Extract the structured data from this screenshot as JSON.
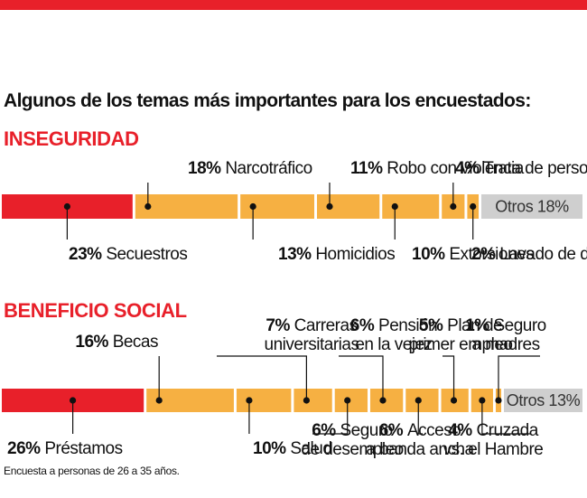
{
  "heading": "Algunos de los temas más importantes para los encuestados:",
  "footnote": "Encuesta a personas de 26 a 35 años.",
  "colors": {
    "accent": "#e8202a",
    "segment": "#f6b042",
    "other": "#cfcfcf",
    "text": "#111111"
  },
  "chart_data": [
    {
      "type": "bar",
      "stacked": true,
      "title": "INSEGURIDAD",
      "unit": "%",
      "segments": [
        {
          "label": "Secuestros",
          "value": 23,
          "pct_text": "23%"
        },
        {
          "label": "Narcotráfico",
          "value": 18,
          "pct_text": "18%"
        },
        {
          "label": "Homicidios",
          "value": 13,
          "pct_text": "13%"
        },
        {
          "label": "Robo con violencia",
          "value": 11,
          "pct_text": "11%"
        },
        {
          "label": "Extorsiones",
          "value": 10,
          "pct_text": "10%"
        },
        {
          "label": "Trata de personas",
          "value": 4,
          "pct_text": "4%"
        },
        {
          "label": "Lavado de dinero",
          "value": 2,
          "pct_text": "2%"
        }
      ],
      "other": {
        "label": "Otros",
        "value": 18,
        "text": "Otros 18%"
      }
    },
    {
      "type": "bar",
      "stacked": true,
      "title": "BENEFICIO SOCIAL",
      "unit": "%",
      "segments": [
        {
          "label": "Préstamos",
          "value": 26,
          "pct_text": "26%"
        },
        {
          "label": "Becas",
          "value": 16,
          "pct_text": "16%"
        },
        {
          "label": "Salud",
          "value": 10,
          "pct_text": "10%"
        },
        {
          "label": "Carreras universitarias",
          "value": 7,
          "pct_text": "7%"
        },
        {
          "label": "Seguro de desempleo",
          "value": 6,
          "pct_text": "6%"
        },
        {
          "label": "Pensión en la vejez",
          "value": 6,
          "pct_text": "6%"
        },
        {
          "label": "Acceso a banda ancha",
          "value": 6,
          "pct_text": "6%"
        },
        {
          "label": "Plan de primer empleo",
          "value": 5,
          "pct_text": "5%"
        },
        {
          "label": "Cruzada vs. el Hambre",
          "value": 4,
          "pct_text": "4%"
        },
        {
          "label": "Seguro a madres",
          "value": 1,
          "pct_text": "1%"
        }
      ],
      "other": {
        "label": "Otros",
        "value": 13,
        "text": "Otros 13%"
      }
    }
  ]
}
